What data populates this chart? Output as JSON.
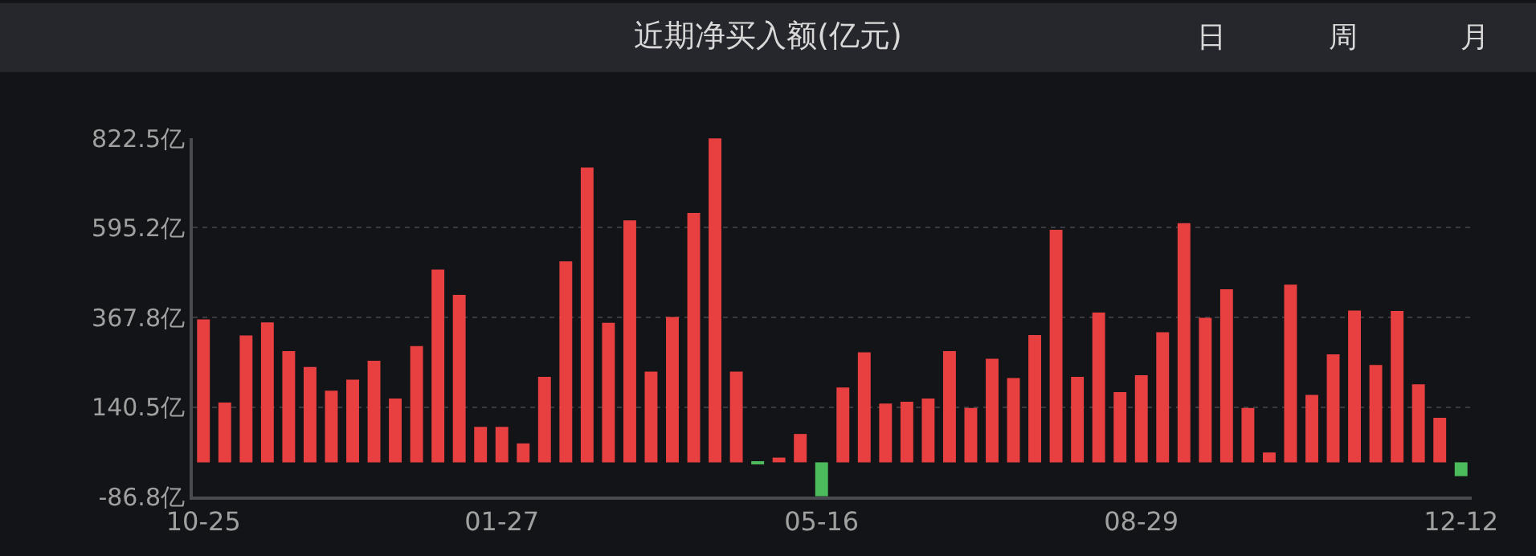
{
  "chart_data": {
    "type": "bar",
    "title": "近期净买入额(亿元)",
    "annotations": [
      "日",
      "周",
      "月"
    ],
    "categories": [
      "10-25",
      null,
      null,
      null,
      null,
      null,
      null,
      null,
      null,
      null,
      null,
      null,
      null,
      null,
      "01-27",
      null,
      null,
      null,
      null,
      null,
      null,
      null,
      null,
      null,
      null,
      null,
      null,
      null,
      null,
      "05-16",
      null,
      null,
      null,
      null,
      null,
      null,
      null,
      null,
      null,
      null,
      null,
      null,
      null,
      null,
      "08-29",
      null,
      null,
      null,
      null,
      null,
      null,
      null,
      null,
      null,
      null,
      null,
      null,
      null,
      null,
      "12-12"
    ],
    "values": [
      363,
      152,
      322,
      355,
      282,
      242,
      182,
      210,
      258,
      162,
      295,
      489,
      425,
      90,
      90,
      48,
      217,
      510,
      748,
      354,
      614,
      230,
      369,
      633,
      822,
      230,
      -2,
      12,
      72,
      -86,
      190,
      279,
      149,
      154,
      162,
      282,
      138,
      263,
      214,
      323,
      590,
      217,
      380,
      178,
      221,
      330,
      607,
      367,
      439,
      138,
      25,
      451,
      171,
      274,
      385,
      247,
      384,
      198,
      113,
      -35
    ],
    "colors": [
      "#e84040",
      "#e84040",
      "#e84040",
      "#e84040",
      "#e84040",
      "#e84040",
      "#e84040",
      "#e84040",
      "#e84040",
      "#e84040",
      "#e84040",
      "#e84040",
      "#e84040",
      "#e84040",
      "#e84040",
      "#e84040",
      "#e84040",
      "#e84040",
      "#e84040",
      "#e84040",
      "#e84040",
      "#e84040",
      "#e84040",
      "#e84040",
      "#e84040",
      "#e84040",
      "#4cbb5c",
      "#e84040",
      "#e84040",
      "#4cbb5c",
      "#e84040",
      "#e84040",
      "#e84040",
      "#e84040",
      "#e84040",
      "#e84040",
      "#e84040",
      "#e84040",
      "#e84040",
      "#e84040",
      "#e84040",
      "#e84040",
      "#e84040",
      "#e84040",
      "#e84040",
      "#e84040",
      "#e84040",
      "#e84040",
      "#e84040",
      "#e84040",
      "#e84040",
      "#e84040",
      "#e84040",
      "#e84040",
      "#e84040",
      "#e84040",
      "#e84040",
      "#e84040",
      "#e84040",
      "#4cbb5c"
    ],
    "ylim": [
      -86.8,
      822.5
    ],
    "yticks": [
      {
        "value": 822.5,
        "label": "822.5亿"
      },
      {
        "value": 595.2,
        "label": "595.2亿"
      },
      {
        "value": 367.8,
        "label": "367.8亿"
      },
      {
        "value": 140.5,
        "label": "140.5亿"
      },
      {
        "value": -86.8,
        "label": "-86.8亿"
      }
    ],
    "grid": "y"
  }
}
